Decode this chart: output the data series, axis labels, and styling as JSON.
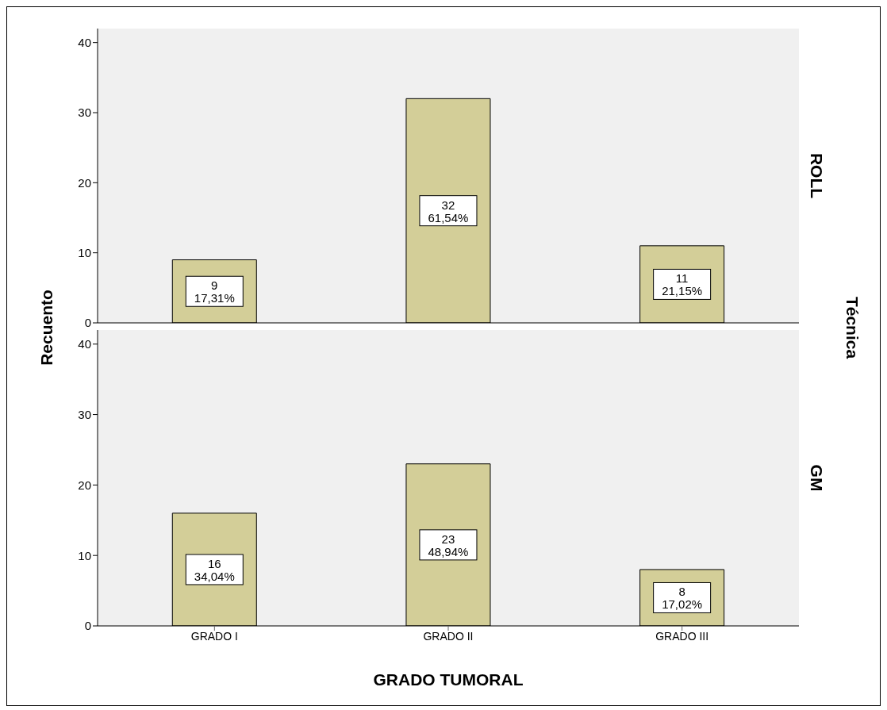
{
  "chart_data": [
    {
      "type": "bar",
      "title": "ROLL",
      "ylabel": "Recuento",
      "categories": [
        null,
        null,
        null
      ],
      "values": [
        9,
        32,
        11
      ],
      "value_labels": [
        "9\n17,31%",
        "32\n61,54%",
        "11\n21,15%"
      ],
      "color": "#d3ce98",
      "ylim": [
        0,
        42
      ],
      "yticks": [
        0,
        10,
        20,
        30,
        40
      ],
      "tick_labels": "y",
      "grid": false,
      "legend": false,
      "annotations": [
        "Técnica"
      ]
    },
    {
      "type": "bar",
      "title": "GM",
      "xlabel": "GRADO TUMORAL",
      "categories": [
        "GRADO I",
        "GRADO II",
        "GRADO III"
      ],
      "values": [
        16,
        23,
        8
      ],
      "value_labels": [
        "16\n34,04%",
        "23\n48,94%",
        "8\n17,02%"
      ],
      "color": "#d3ce98",
      "ylim": [
        0,
        42
      ],
      "yticks": [
        0,
        10,
        20,
        30,
        40
      ],
      "grid": false,
      "legend": false
    }
  ]
}
